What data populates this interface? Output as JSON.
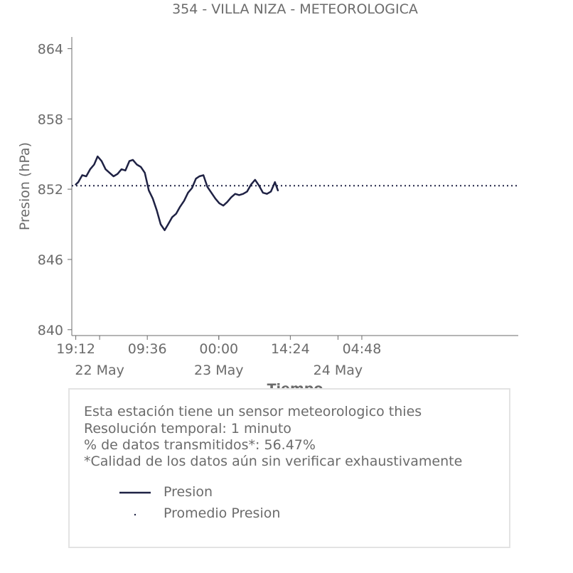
{
  "title": "354 - VILLA NIZA - METEOROLOGICA",
  "chart_data": {
    "type": "line",
    "ylabel": "Presion (hPa)",
    "xlabel": "Tiempo",
    "ylim": [
      839.5,
      865.0
    ],
    "y_ticks": [
      "864",
      "858",
      "852",
      "846",
      "840"
    ],
    "x_ticks": [
      "19:12",
      "09:36",
      "00:00",
      "14:24",
      "04:48"
    ],
    "x_date_labels": [
      "22 May",
      "23 May",
      "24 May"
    ],
    "x_axis": "time (hours relative to 23 May 00:00)",
    "xlim": [
      -29.6,
      60.3
    ],
    "series": [
      {
        "name": "Presion",
        "color": "#1f2244",
        "x": [
          -28.8,
          -28.3,
          -27.5,
          -26.7,
          -25.9,
          -25.1,
          -24.4,
          -23.6,
          -22.8,
          -22.0,
          -21.2,
          -20.4,
          -19.6,
          -18.8,
          -18.0,
          -17.3,
          -16.5,
          -15.7,
          -14.9,
          -14.1,
          -13.3,
          -12.5,
          -11.7,
          -10.9,
          -10.2,
          -9.4,
          -8.6,
          -7.8,
          -7.0,
          -6.2,
          -5.4,
          -4.6,
          -3.9,
          -3.1,
          -2.3,
          -1.5,
          -0.7,
          0.1,
          0.9,
          1.7,
          2.5,
          3.3,
          4.1,
          4.9,
          5.7,
          6.5,
          7.3,
          8.1,
          8.9,
          9.7,
          10.5,
          11.3,
          11.9
        ],
        "values": [
          852.4,
          852.6,
          853.2,
          853.1,
          853.7,
          854.1,
          854.8,
          854.4,
          853.7,
          853.4,
          853.1,
          853.3,
          853.7,
          853.6,
          854.4,
          854.5,
          854.1,
          853.9,
          853.4,
          851.9,
          851.2,
          850.2,
          849.0,
          848.5,
          849.0,
          849.6,
          849.9,
          850.5,
          851.0,
          851.7,
          852.1,
          852.9,
          853.1,
          853.2,
          852.2,
          851.7,
          851.2,
          850.8,
          850.6,
          850.9,
          851.3,
          851.6,
          851.5,
          851.6,
          851.8,
          852.4,
          852.8,
          852.3,
          851.7,
          851.6,
          851.8,
          852.6,
          851.9
        ]
      },
      {
        "name": "Promedio Presion",
        "color": "#1f2244",
        "style": "dotted",
        "x": [
          -29.6,
          60.3
        ],
        "values": [
          852.3,
          852.3
        ]
      }
    ],
    "legend_position": "bottom (inside info box)"
  },
  "info": {
    "line1": "Esta estación tiene un sensor meteorologico thies",
    "line2": "Resolución temporal: 1 minuto",
    "line3": "% de datos transmitidos*: 56.47%",
    "line4": "*Calidad de los datos aún sin verificar exhaustivamente"
  },
  "legend": {
    "item1": "Presion",
    "item2": "Promedio Presion"
  }
}
